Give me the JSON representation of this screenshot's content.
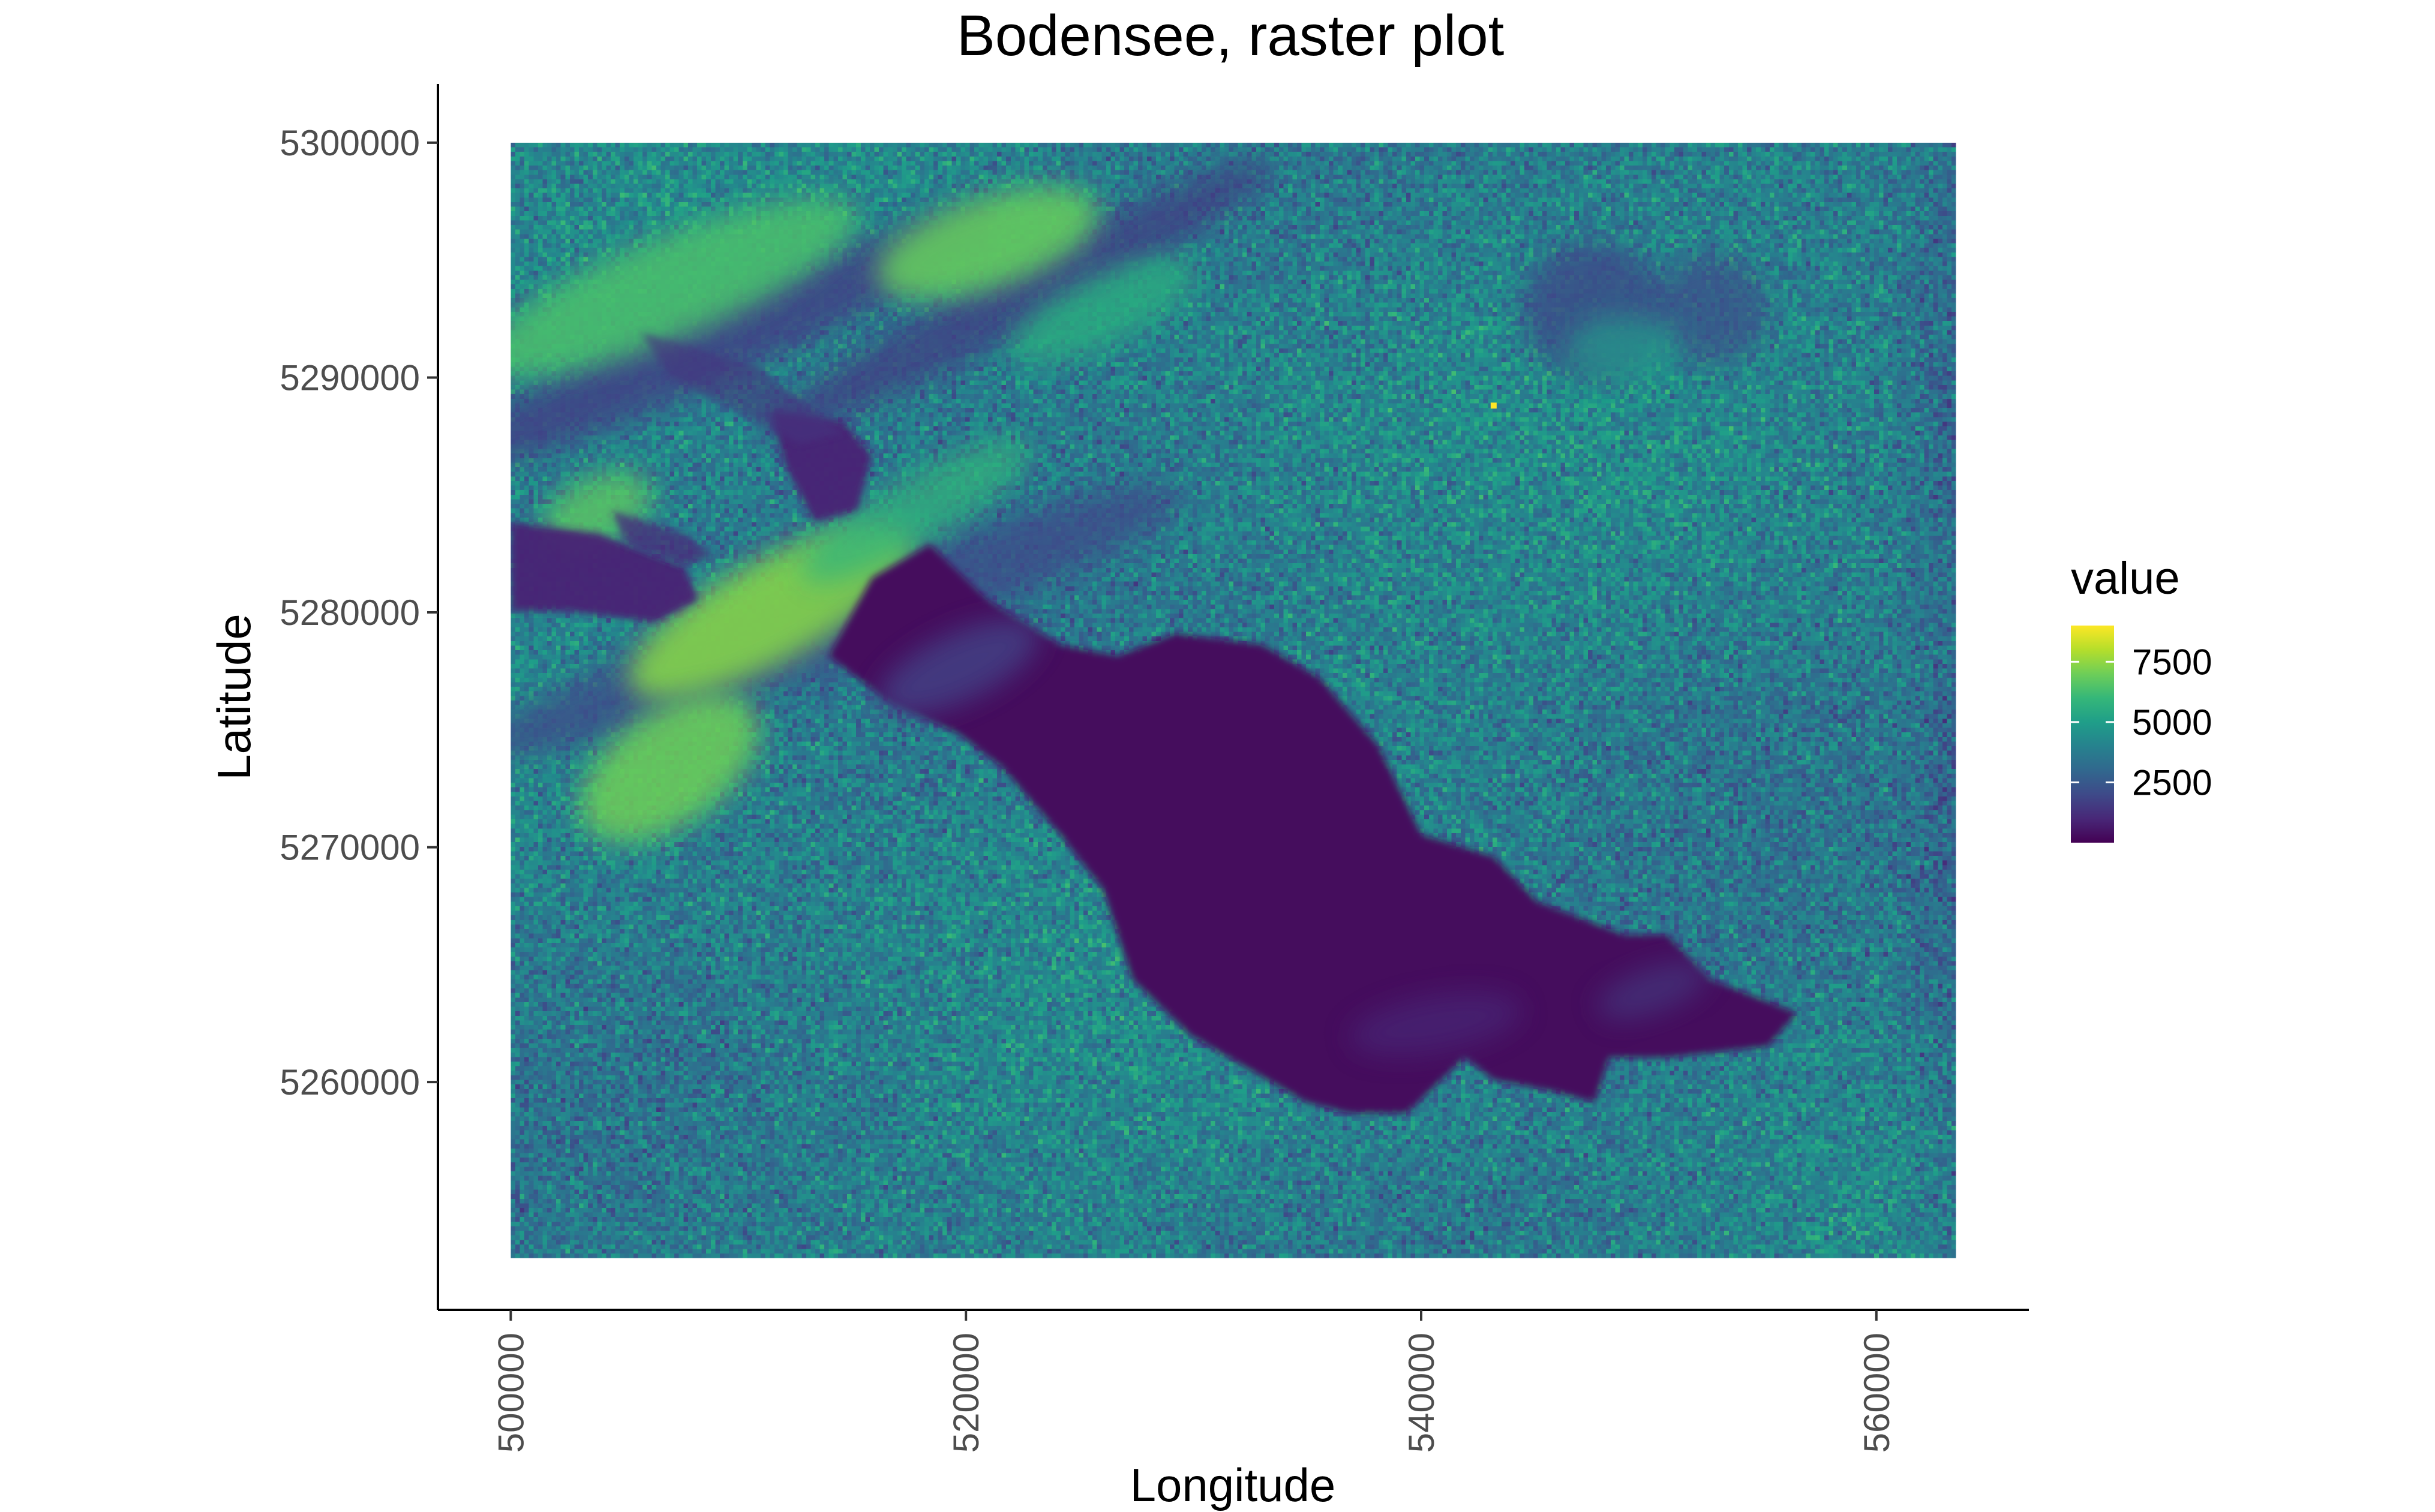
{
  "chart_data": {
    "type": "heatmap",
    "title": "Bodensee, raster plot",
    "xlabel": "Longitude",
    "ylabel": "Latitude",
    "x_ticks": [
      500000,
      520000,
      540000,
      560000
    ],
    "y_ticks": [
      5260000,
      5270000,
      5280000,
      5290000,
      5300000
    ],
    "xlim": [
      496800,
      566700
    ],
    "ylim": [
      5250300,
      5302500
    ],
    "raster_extent": {
      "x": [
        500000,
        563500
      ],
      "y": [
        5252500,
        5300000
      ]
    },
    "legend": {
      "title": "value",
      "position": "right",
      "ticks": [
        2500,
        5000,
        7500
      ],
      "range": [
        0,
        9000
      ],
      "colors": [
        "#440154",
        "#482878",
        "#3e4a89",
        "#31688e",
        "#26828e",
        "#1f9e89",
        "#35b779",
        "#6ece58",
        "#b5de2b",
        "#fde725"
      ]
    },
    "background_value": 3900,
    "features": [
      {
        "name": "lake",
        "value": 250
      },
      {
        "name": "lake-shallow",
        "value": 1600
      },
      {
        "name": "dark-river-channels",
        "value": 900
      },
      {
        "name": "bright-ridges",
        "value": 7300
      },
      {
        "name": "hot-pixel",
        "value": 9000
      }
    ],
    "grid": false
  }
}
